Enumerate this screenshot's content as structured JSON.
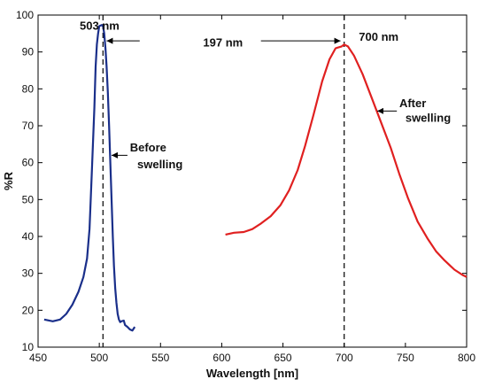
{
  "chart_data": {
    "type": "line",
    "xlabel": "Wavelength [nm]",
    "ylabel": "%R",
    "xlim": [
      450,
      800
    ],
    "ylim": [
      10,
      100
    ],
    "xticks": [
      450,
      500,
      550,
      600,
      650,
      700,
      750,
      800
    ],
    "yticks": [
      10,
      20,
      30,
      40,
      50,
      60,
      70,
      80,
      90,
      100
    ],
    "grid": false,
    "series": [
      {
        "color": "#1a2f8a",
        "x": [
          455,
          462,
          468,
          473,
          478,
          483,
          487,
          490,
          492,
          494,
          496,
          497,
          498,
          499,
          500,
          502,
          503,
          504,
          505,
          506,
          507,
          508,
          509,
          510,
          511,
          512,
          513,
          514,
          515,
          516,
          517,
          518,
          520,
          521,
          523,
          525,
          527,
          529
        ],
        "y": [
          17.5,
          17,
          17.5,
          19,
          21.5,
          25,
          29,
          34,
          42,
          58,
          75,
          86,
          92,
          95,
          97,
          97.3,
          97,
          95,
          91,
          86,
          79,
          70,
          60,
          50,
          40,
          32,
          26,
          22,
          19,
          17.5,
          16.8,
          17,
          17.2,
          16,
          15.5,
          14.8,
          14.5,
          15.5
        ]
      },
      {
        "color": "#e02020",
        "x": [
          603,
          610,
          618,
          625,
          632,
          640,
          648,
          655,
          662,
          668,
          675,
          682,
          688,
          693,
          698,
          700,
          703,
          708,
          715,
          722,
          730,
          738,
          745,
          752,
          760,
          768,
          775,
          782,
          790,
          797,
          800
        ],
        "y": [
          40.5,
          41,
          41.2,
          42,
          43.5,
          45.5,
          48.5,
          52.5,
          58,
          64.5,
          73,
          82,
          88,
          91,
          91.5,
          92,
          91.5,
          89,
          84,
          78,
          71,
          64,
          57,
          50.5,
          44,
          39.5,
          36,
          33.5,
          31,
          29.5,
          29
        ]
      }
    ],
    "vlines": [
      503,
      700
    ],
    "annotations": [
      {
        "text": "503 nm",
        "x": 484,
        "y": 97
      },
      {
        "text": "700 nm",
        "x": 712,
        "y": 94
      },
      {
        "text": "197 nm",
        "x": 601,
        "y": 92.5
      },
      {
        "text": "Before",
        "x": 525,
        "y": 64
      },
      {
        "text": "swelling",
        "x": 531,
        "y": 59.5
      },
      {
        "text": "After",
        "x": 745,
        "y": 76
      },
      {
        "text": "swelling",
        "x": 750,
        "y": 72
      }
    ]
  }
}
